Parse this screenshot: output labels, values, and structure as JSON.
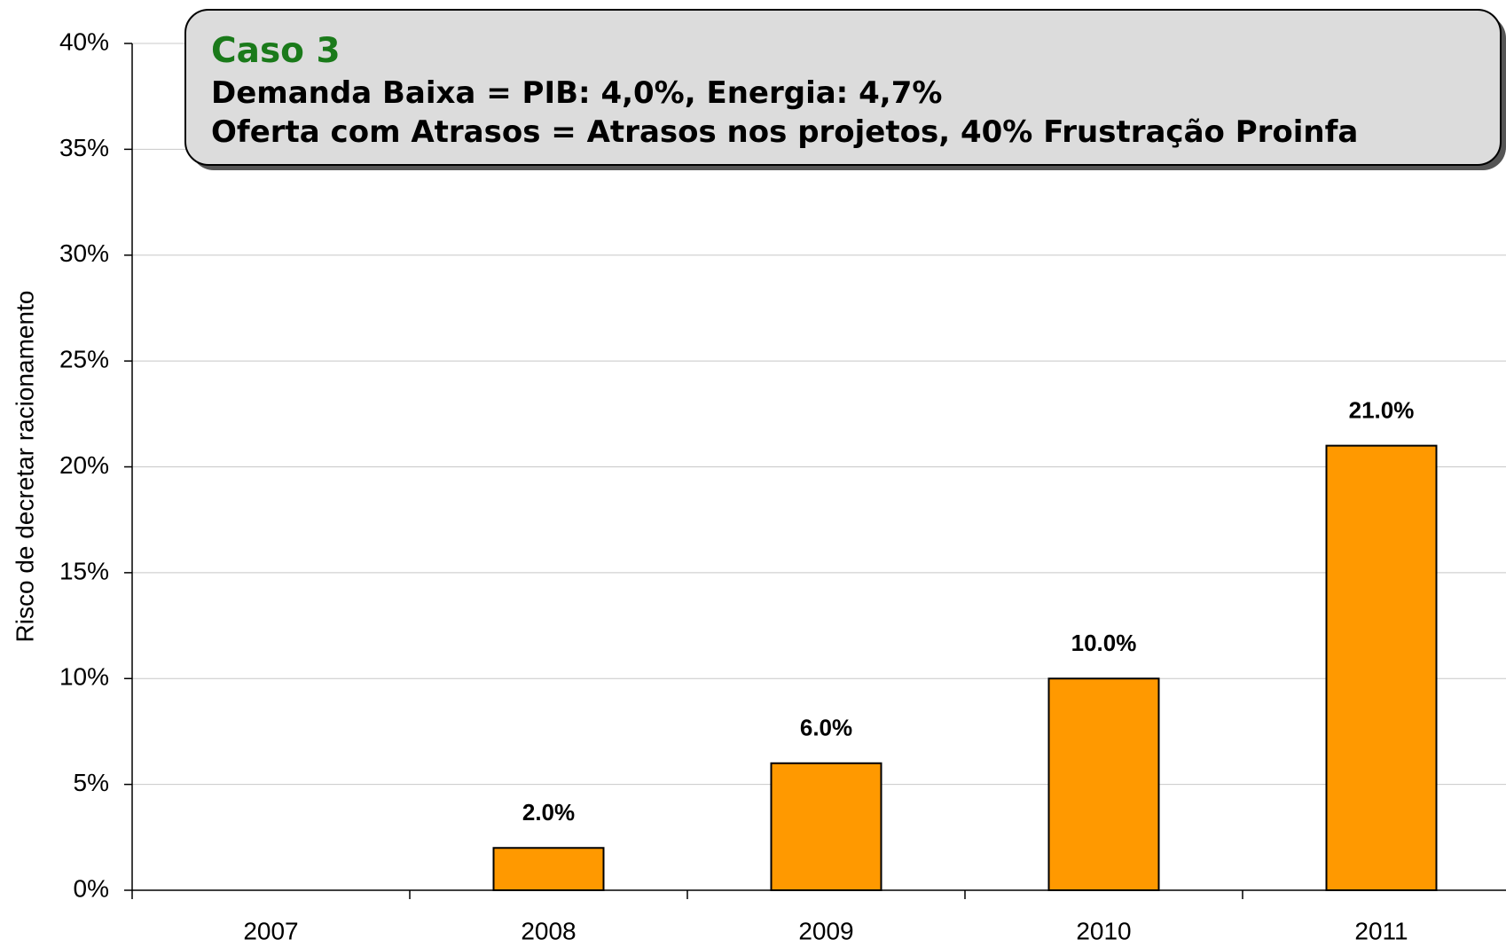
{
  "chart_data": {
    "type": "bar",
    "annotation": {
      "title": "Caso 3",
      "lines": [
        "Demanda Baixa = PIB: 4,0%, Energia: 4,7%",
        "Oferta com Atrasos = Atrasos nos projetos, 40% Frustração Proinfa"
      ]
    },
    "y_label": "Risco de decretar racionamento",
    "categories": [
      "2007",
      "2008",
      "2009",
      "2010",
      "2011"
    ],
    "values": [
      0,
      2,
      6,
      10,
      21
    ],
    "value_labels": [
      null,
      "2.0%",
      "6.0%",
      "10.0%",
      "21.0%"
    ],
    "color": "#ff9900",
    "ylim": [
      0,
      40
    ],
    "yticks": [
      {
        "value": 0,
        "label": "0%"
      },
      {
        "value": 5,
        "label": "5%"
      },
      {
        "value": 10,
        "label": "10%"
      },
      {
        "value": 15,
        "label": "15%"
      },
      {
        "value": 20,
        "label": "20%"
      },
      {
        "value": 25,
        "label": "25%"
      },
      {
        "value": 30,
        "label": "30%"
      },
      {
        "value": 35,
        "label": "35%"
      },
      {
        "value": 40,
        "label": "40%"
      }
    ],
    "grid": true
  }
}
